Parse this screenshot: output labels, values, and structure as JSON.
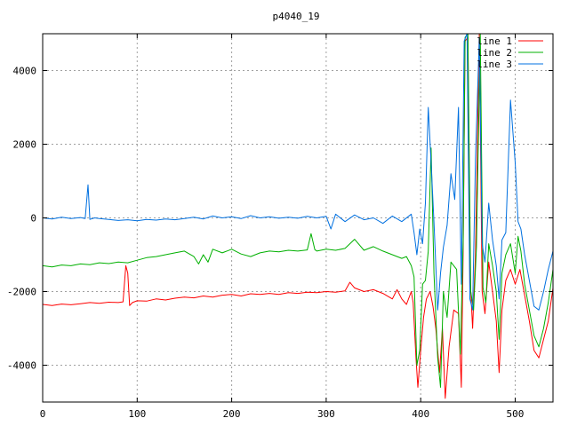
{
  "chart_data": {
    "type": "line",
    "title": "p4040_19",
    "xlabel": "",
    "ylabel": "",
    "xlim": [
      0,
      540
    ],
    "ylim": [
      -5000,
      5000
    ],
    "x_ticks": [
      0,
      100,
      200,
      300,
      400,
      500
    ],
    "y_ticks": [
      -4000,
      -2000,
      0,
      2000,
      4000
    ],
    "grid": true,
    "legend_position": "top-right",
    "series": [
      {
        "name": "line 1",
        "color": "#ff0000",
        "points": [
          [
            0,
            -2350
          ],
          [
            10,
            -2380
          ],
          [
            20,
            -2340
          ],
          [
            30,
            -2360
          ],
          [
            40,
            -2330
          ],
          [
            50,
            -2300
          ],
          [
            60,
            -2320
          ],
          [
            70,
            -2290
          ],
          [
            80,
            -2300
          ],
          [
            85,
            -2280
          ],
          [
            88,
            -1300
          ],
          [
            90,
            -1500
          ],
          [
            92,
            -2380
          ],
          [
            95,
            -2300
          ],
          [
            100,
            -2250
          ],
          [
            110,
            -2260
          ],
          [
            120,
            -2200
          ],
          [
            130,
            -2230
          ],
          [
            140,
            -2180
          ],
          [
            150,
            -2150
          ],
          [
            160,
            -2170
          ],
          [
            170,
            -2120
          ],
          [
            180,
            -2150
          ],
          [
            190,
            -2100
          ],
          [
            200,
            -2080
          ],
          [
            210,
            -2120
          ],
          [
            220,
            -2060
          ],
          [
            230,
            -2080
          ],
          [
            240,
            -2050
          ],
          [
            250,
            -2080
          ],
          [
            260,
            -2030
          ],
          [
            270,
            -2050
          ],
          [
            280,
            -2020
          ],
          [
            290,
            -2030
          ],
          [
            300,
            -2000
          ],
          [
            310,
            -2020
          ],
          [
            320,
            -1980
          ],
          [
            325,
            -1750
          ],
          [
            330,
            -1900
          ],
          [
            340,
            -2000
          ],
          [
            350,
            -1950
          ],
          [
            360,
            -2050
          ],
          [
            370,
            -2200
          ],
          [
            375,
            -1950
          ],
          [
            380,
            -2200
          ],
          [
            385,
            -2350
          ],
          [
            390,
            -2000
          ],
          [
            392,
            -2300
          ],
          [
            395,
            -3800
          ],
          [
            397,
            -4600
          ],
          [
            400,
            -3600
          ],
          [
            403,
            -2700
          ],
          [
            406,
            -2200
          ],
          [
            410,
            -2000
          ],
          [
            413,
            -2400
          ],
          [
            416,
            -3000
          ],
          [
            420,
            -4200
          ],
          [
            423,
            -3000
          ],
          [
            426,
            -4900
          ],
          [
            430,
            -3500
          ],
          [
            435,
            -2500
          ],
          [
            440,
            -2600
          ],
          [
            443,
            -4600
          ],
          [
            445,
            -800
          ],
          [
            447,
            4800
          ],
          [
            450,
            4900
          ],
          [
            452,
            -1500
          ],
          [
            455,
            -3000
          ],
          [
            458,
            -1000
          ],
          [
            462,
            5000
          ],
          [
            465,
            -2000
          ],
          [
            468,
            -2600
          ],
          [
            472,
            -1200
          ],
          [
            476,
            -2000
          ],
          [
            480,
            -2800
          ],
          [
            483,
            -4200
          ],
          [
            486,
            -2500
          ],
          [
            490,
            -1700
          ],
          [
            495,
            -1400
          ],
          [
            500,
            -1800
          ],
          [
            505,
            -1400
          ],
          [
            510,
            -2100
          ],
          [
            515,
            -2800
          ],
          [
            520,
            -3600
          ],
          [
            525,
            -3800
          ],
          [
            530,
            -3300
          ],
          [
            535,
            -2800
          ],
          [
            540,
            -1900
          ]
        ]
      },
      {
        "name": "line 2",
        "color": "#00b000",
        "points": [
          [
            0,
            -1300
          ],
          [
            10,
            -1330
          ],
          [
            20,
            -1280
          ],
          [
            30,
            -1300
          ],
          [
            40,
            -1250
          ],
          [
            50,
            -1270
          ],
          [
            60,
            -1220
          ],
          [
            70,
            -1240
          ],
          [
            80,
            -1200
          ],
          [
            90,
            -1220
          ],
          [
            100,
            -1150
          ],
          [
            110,
            -1080
          ],
          [
            120,
            -1050
          ],
          [
            130,
            -1000
          ],
          [
            140,
            -950
          ],
          [
            150,
            -900
          ],
          [
            160,
            -1050
          ],
          [
            165,
            -1250
          ],
          [
            170,
            -1000
          ],
          [
            175,
            -1200
          ],
          [
            180,
            -850
          ],
          [
            190,
            -950
          ],
          [
            200,
            -850
          ],
          [
            210,
            -980
          ],
          [
            220,
            -1050
          ],
          [
            230,
            -950
          ],
          [
            240,
            -900
          ],
          [
            250,
            -920
          ],
          [
            260,
            -880
          ],
          [
            270,
            -900
          ],
          [
            280,
            -870
          ],
          [
            284,
            -430
          ],
          [
            288,
            -860
          ],
          [
            290,
            -900
          ],
          [
            300,
            -850
          ],
          [
            310,
            -880
          ],
          [
            320,
            -830
          ],
          [
            330,
            -580
          ],
          [
            340,
            -880
          ],
          [
            350,
            -780
          ],
          [
            360,
            -900
          ],
          [
            370,
            -1000
          ],
          [
            380,
            -1100
          ],
          [
            385,
            -1050
          ],
          [
            390,
            -1300
          ],
          [
            393,
            -1600
          ],
          [
            396,
            -4000
          ],
          [
            399,
            -3600
          ],
          [
            402,
            -1800
          ],
          [
            405,
            -1700
          ],
          [
            408,
            -900
          ],
          [
            411,
            1900
          ],
          [
            414,
            -1500
          ],
          [
            418,
            -3800
          ],
          [
            421,
            -4600
          ],
          [
            424,
            -2000
          ],
          [
            428,
            -2700
          ],
          [
            432,
            -1200
          ],
          [
            438,
            -1400
          ],
          [
            442,
            -3700
          ],
          [
            445,
            -600
          ],
          [
            447,
            4900
          ],
          [
            450,
            5000
          ],
          [
            453,
            -2000
          ],
          [
            456,
            -2500
          ],
          [
            459,
            -800
          ],
          [
            463,
            5000
          ],
          [
            466,
            -1900
          ],
          [
            469,
            -2300
          ],
          [
            472,
            -700
          ],
          [
            476,
            -1300
          ],
          [
            480,
            -2000
          ],
          [
            483,
            -3300
          ],
          [
            486,
            -1500
          ],
          [
            490,
            -1000
          ],
          [
            495,
            -700
          ],
          [
            500,
            -1500
          ],
          [
            503,
            -500
          ],
          [
            506,
            -900
          ],
          [
            510,
            -1800
          ],
          [
            515,
            -2500
          ],
          [
            520,
            -3200
          ],
          [
            525,
            -3500
          ],
          [
            530,
            -3000
          ],
          [
            535,
            -2300
          ],
          [
            540,
            -1400
          ]
        ]
      },
      {
        "name": "line 3",
        "color": "#0070e0",
        "points": [
          [
            0,
            0
          ],
          [
            10,
            -30
          ],
          [
            20,
            20
          ],
          [
            30,
            -20
          ],
          [
            40,
            10
          ],
          [
            45,
            -20
          ],
          [
            48,
            900
          ],
          [
            50,
            -40
          ],
          [
            55,
            0
          ],
          [
            60,
            -20
          ],
          [
            70,
            -40
          ],
          [
            80,
            -70
          ],
          [
            90,
            -50
          ],
          [
            100,
            -80
          ],
          [
            110,
            -40
          ],
          [
            120,
            -60
          ],
          [
            130,
            -30
          ],
          [
            140,
            -50
          ],
          [
            150,
            -20
          ],
          [
            160,
            20
          ],
          [
            170,
            -30
          ],
          [
            180,
            50
          ],
          [
            190,
            0
          ],
          [
            200,
            30
          ],
          [
            210,
            -20
          ],
          [
            220,
            60
          ],
          [
            230,
            0
          ],
          [
            240,
            30
          ],
          [
            250,
            -10
          ],
          [
            260,
            20
          ],
          [
            270,
            -10
          ],
          [
            280,
            40
          ],
          [
            290,
            0
          ],
          [
            300,
            40
          ],
          [
            305,
            -300
          ],
          [
            310,
            100
          ],
          [
            320,
            -100
          ],
          [
            330,
            80
          ],
          [
            340,
            -50
          ],
          [
            350,
            0
          ],
          [
            360,
            -150
          ],
          [
            370,
            50
          ],
          [
            380,
            -100
          ],
          [
            390,
            100
          ],
          [
            393,
            -400
          ],
          [
            396,
            -1000
          ],
          [
            399,
            -300
          ],
          [
            402,
            -700
          ],
          [
            405,
            400
          ],
          [
            408,
            3000
          ],
          [
            411,
            1500
          ],
          [
            414,
            -100
          ],
          [
            418,
            -2500
          ],
          [
            421,
            -1500
          ],
          [
            424,
            -800
          ],
          [
            428,
            -200
          ],
          [
            432,
            1200
          ],
          [
            436,
            500
          ],
          [
            440,
            3000
          ],
          [
            443,
            -1800
          ],
          [
            446,
            4800
          ],
          [
            449,
            5000
          ],
          [
            452,
            -2200
          ],
          [
            455,
            -2500
          ],
          [
            458,
            1600
          ],
          [
            462,
            4900
          ],
          [
            465,
            -700
          ],
          [
            468,
            -1200
          ],
          [
            472,
            400
          ],
          [
            476,
            -600
          ],
          [
            480,
            -1300
          ],
          [
            483,
            -2200
          ],
          [
            486,
            -600
          ],
          [
            490,
            -400
          ],
          [
            495,
            3200
          ],
          [
            500,
            1500
          ],
          [
            503,
            -100
          ],
          [
            506,
            -300
          ],
          [
            510,
            -1000
          ],
          [
            515,
            -1700
          ],
          [
            520,
            -2400
          ],
          [
            525,
            -2500
          ],
          [
            530,
            -2000
          ],
          [
            535,
            -1400
          ],
          [
            540,
            -900
          ]
        ]
      }
    ]
  }
}
